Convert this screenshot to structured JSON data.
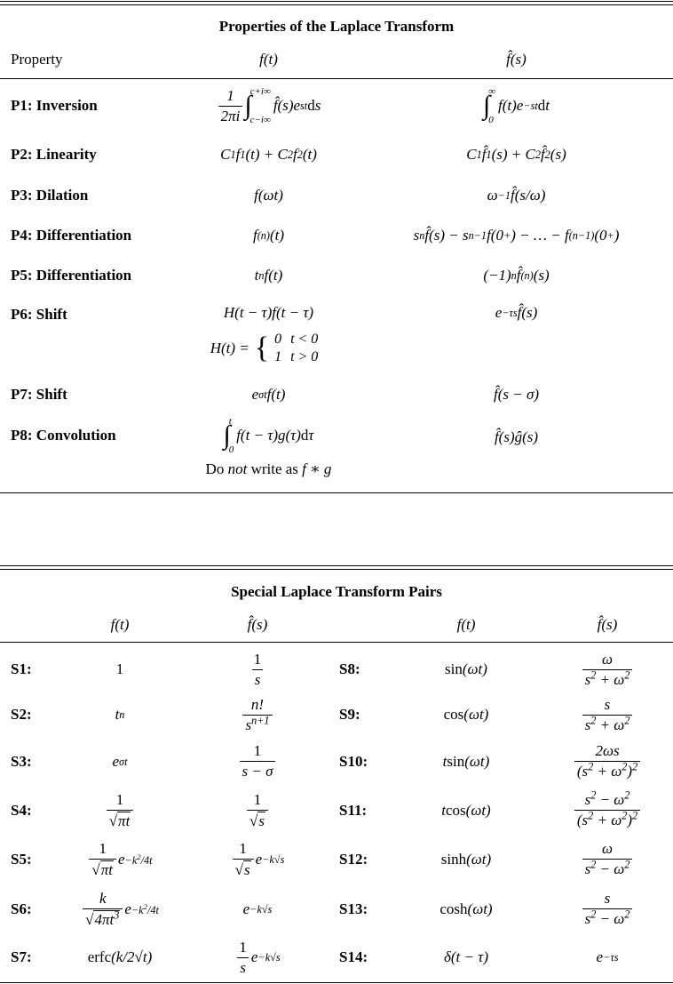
{
  "properties": {
    "title": "Properties of the Laplace Transform",
    "headers": {
      "property": "Property",
      "f": "f(t)",
      "F": "f̂(s)"
    },
    "rows": [
      {
        "label": "P1:  Inversion",
        "f": [
          {
            "n": "1",
            "d": "2πi"
          },
          {
            "int": "c−i∞",
            "up": "c+i∞"
          },
          "f̂(s)e^{st}\\rm{ d}s"
        ],
        "F": [
          {
            "int": "0",
            "up": "∞"
          },
          "f(t)e^{−st}\\rm{ d}t"
        ]
      },
      {
        "label": "P2:  Linearity",
        "f": [
          "C_{1}f_{1}(t) + C_{2}f_{2}(t)"
        ],
        "F": [
          "C_{1}f̂_{1}(s) + C_{2}f̂_{2}(s)"
        ]
      },
      {
        "label": "P3:  Dilation",
        "f": [
          "f(ωt)"
        ],
        "F": [
          "ω^{−1}f̂(s/ω)"
        ]
      },
      {
        "label": "P4:  Differentiation",
        "f": [
          "f^{(n)}(t)"
        ],
        "F": [
          "s^{n}f̂(s) − s^{n−1}f(0^{+}) − … − f^{(n−1)}(0^{+})"
        ]
      },
      {
        "label": "P5:  Differentiation",
        "f": [
          "t^{n}f(t)"
        ],
        "F": [
          "(−1)^{n}f̂^{(n)}(s)"
        ]
      },
      {
        "label": "P6:  Shift",
        "f": [
          "H(t − τ)f(t − τ)"
        ],
        "F": [
          "e^{−τs}f̂(s)"
        ],
        "extra": {
          "lhs": "H(t) = ",
          "cases": [
            [
              "0",
              "t < 0"
            ],
            [
              "1",
              "t > 0"
            ]
          ]
        }
      },
      {
        "label": "P7:  Shift",
        "f": [
          "e^{σt}f(t)"
        ],
        "F": [
          "f̂(s − σ)"
        ]
      },
      {
        "label": "P8:  Convolution",
        "f": [
          {
            "int": "0",
            "up": "t"
          },
          "f(t − τ)g(τ)\\rm{ d}τ"
        ],
        "F": [
          "f̂(s)ĝ(s)"
        ],
        "note": {
          "pre": "Do ",
          "em": "not",
          "post": " write as ",
          "expr": "f ∗ g"
        }
      }
    ]
  },
  "pairs": {
    "title": "Special Laplace Transform Pairs",
    "headers": {
      "f": "f(t)",
      "F": "f̂(s)"
    },
    "rows": [
      {
        "l1": "S1:",
        "f1": [
          "\\rm{1}"
        ],
        "F1": [
          {
            "n": "\\rm{1}",
            "d": "s"
          }
        ],
        "l2": "S8:",
        "f2": [
          "\\rm{sin}(ωt)"
        ],
        "F2": [
          {
            "n": "ω",
            "d": "s^{2} + ω^{2}"
          }
        ]
      },
      {
        "l1": "S2:",
        "f1": [
          "t^{n}"
        ],
        "F1": [
          {
            "n": "n!",
            "d": "s^{n+1}"
          }
        ],
        "l2": "S9:",
        "f2": [
          "\\rm{cos}(ωt)"
        ],
        "F2": [
          {
            "n": "s",
            "d": "s^{2} + ω^{2}"
          }
        ]
      },
      {
        "l1": "S3:",
        "f1": [
          "e^{σt}"
        ],
        "F1": [
          {
            "n": "\\rm{1}",
            "d": "s − σ"
          }
        ],
        "l2": "S10:",
        "f2": [
          "t \\rm{sin}(ωt)"
        ],
        "F2": [
          {
            "n": "2ωs",
            "d": "(s^{2} + ω^{2})^{2}"
          }
        ]
      },
      {
        "l1": "S4:",
        "f1": [
          {
            "n": "\\rm{1}",
            "d": {
              "sqrt": "πt"
            }
          }
        ],
        "F1": [
          {
            "n": "\\rm{1}",
            "d": {
              "sqrt": "s"
            }
          }
        ],
        "l2": "S11:",
        "f2": [
          "t \\rm{cos}(ωt)"
        ],
        "F2": [
          {
            "n": "s^{2} − ω^{2}",
            "d": "(s^{2} + ω^{2})^{2}"
          }
        ]
      },
      {
        "l1": "S5:",
        "f1": [
          {
            "n": "\\rm{1}",
            "d": {
              "sqrt": "πt"
            }
          },
          "e^{−k^{2}/4t}"
        ],
        "F1": [
          {
            "n": "\\rm{1}",
            "d": {
              "sqrt": "s"
            }
          },
          "e^{−k√s}"
        ],
        "l2": "S12:",
        "f2": [
          "\\rm{sinh}(ωt)"
        ],
        "F2": [
          {
            "n": "ω",
            "d": "s^{2} − ω^{2}"
          }
        ]
      },
      {
        "l1": "S6:",
        "f1": [
          {
            "n": "k",
            "d": {
              "sqrt": "4πt^{3}"
            }
          },
          "e^{−k^{2}/4t}"
        ],
        "F1": [
          "e^{−k√s}"
        ],
        "l2": "S13:",
        "f2": [
          "\\rm{cosh}(ωt)"
        ],
        "F2": [
          {
            "n": "s",
            "d": "s^{2} − ω^{2}"
          }
        ]
      },
      {
        "l1": "S7:",
        "f1": [
          "\\rm{erfc} (k/2√t)"
        ],
        "F1": [
          {
            "n": "\\rm{1}",
            "d": "s"
          },
          "e^{−k√s}"
        ],
        "l2": "S14:",
        "f2": [
          "δ(t − τ)"
        ],
        "F2": [
          "e^{−τs}"
        ]
      }
    ]
  }
}
